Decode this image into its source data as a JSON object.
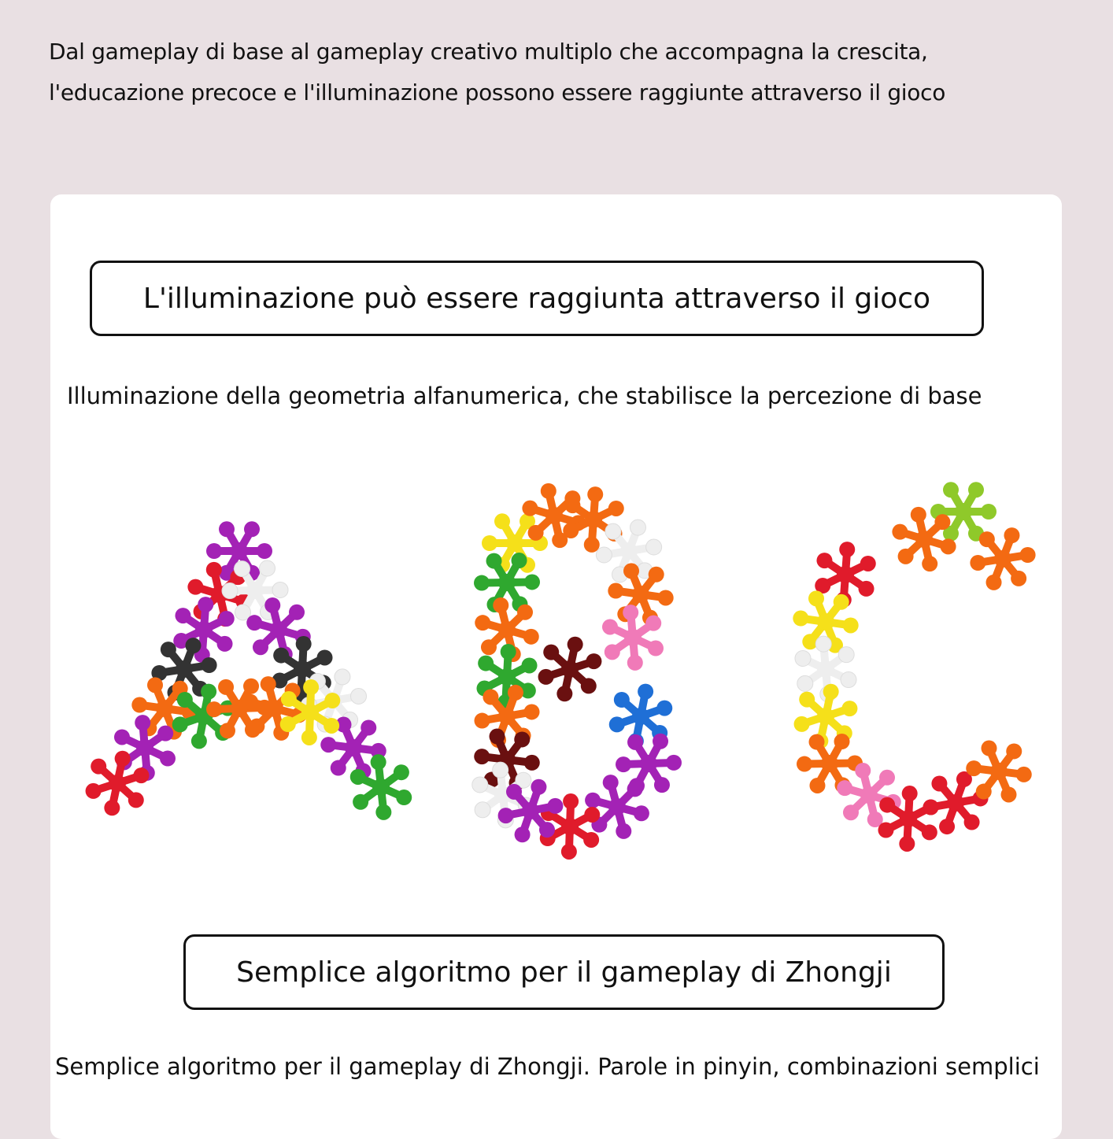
{
  "intro": {
    "line1": "Dal gameplay di base al gameplay creativo multiplo che accompagna la crescita,",
    "line2": "l'educazione precoce e l'illuminazione possono essere raggiunte attraverso il gioco"
  },
  "section1": {
    "title": "L'illuminazione può essere raggiunta attraverso il gioco",
    "subtitle": "Illuminazione della geometria alfanumerica, che stabilisce la percezione di base"
  },
  "image": {
    "letters": [
      "A",
      "B",
      "C"
    ]
  },
  "section2": {
    "title": "Semplice algoritmo per il gameplay di Zhongji",
    "subtitle": "Semplice algoritmo per il gameplay di Zhongji. Parole in pinyin, combinazioni semplici"
  }
}
